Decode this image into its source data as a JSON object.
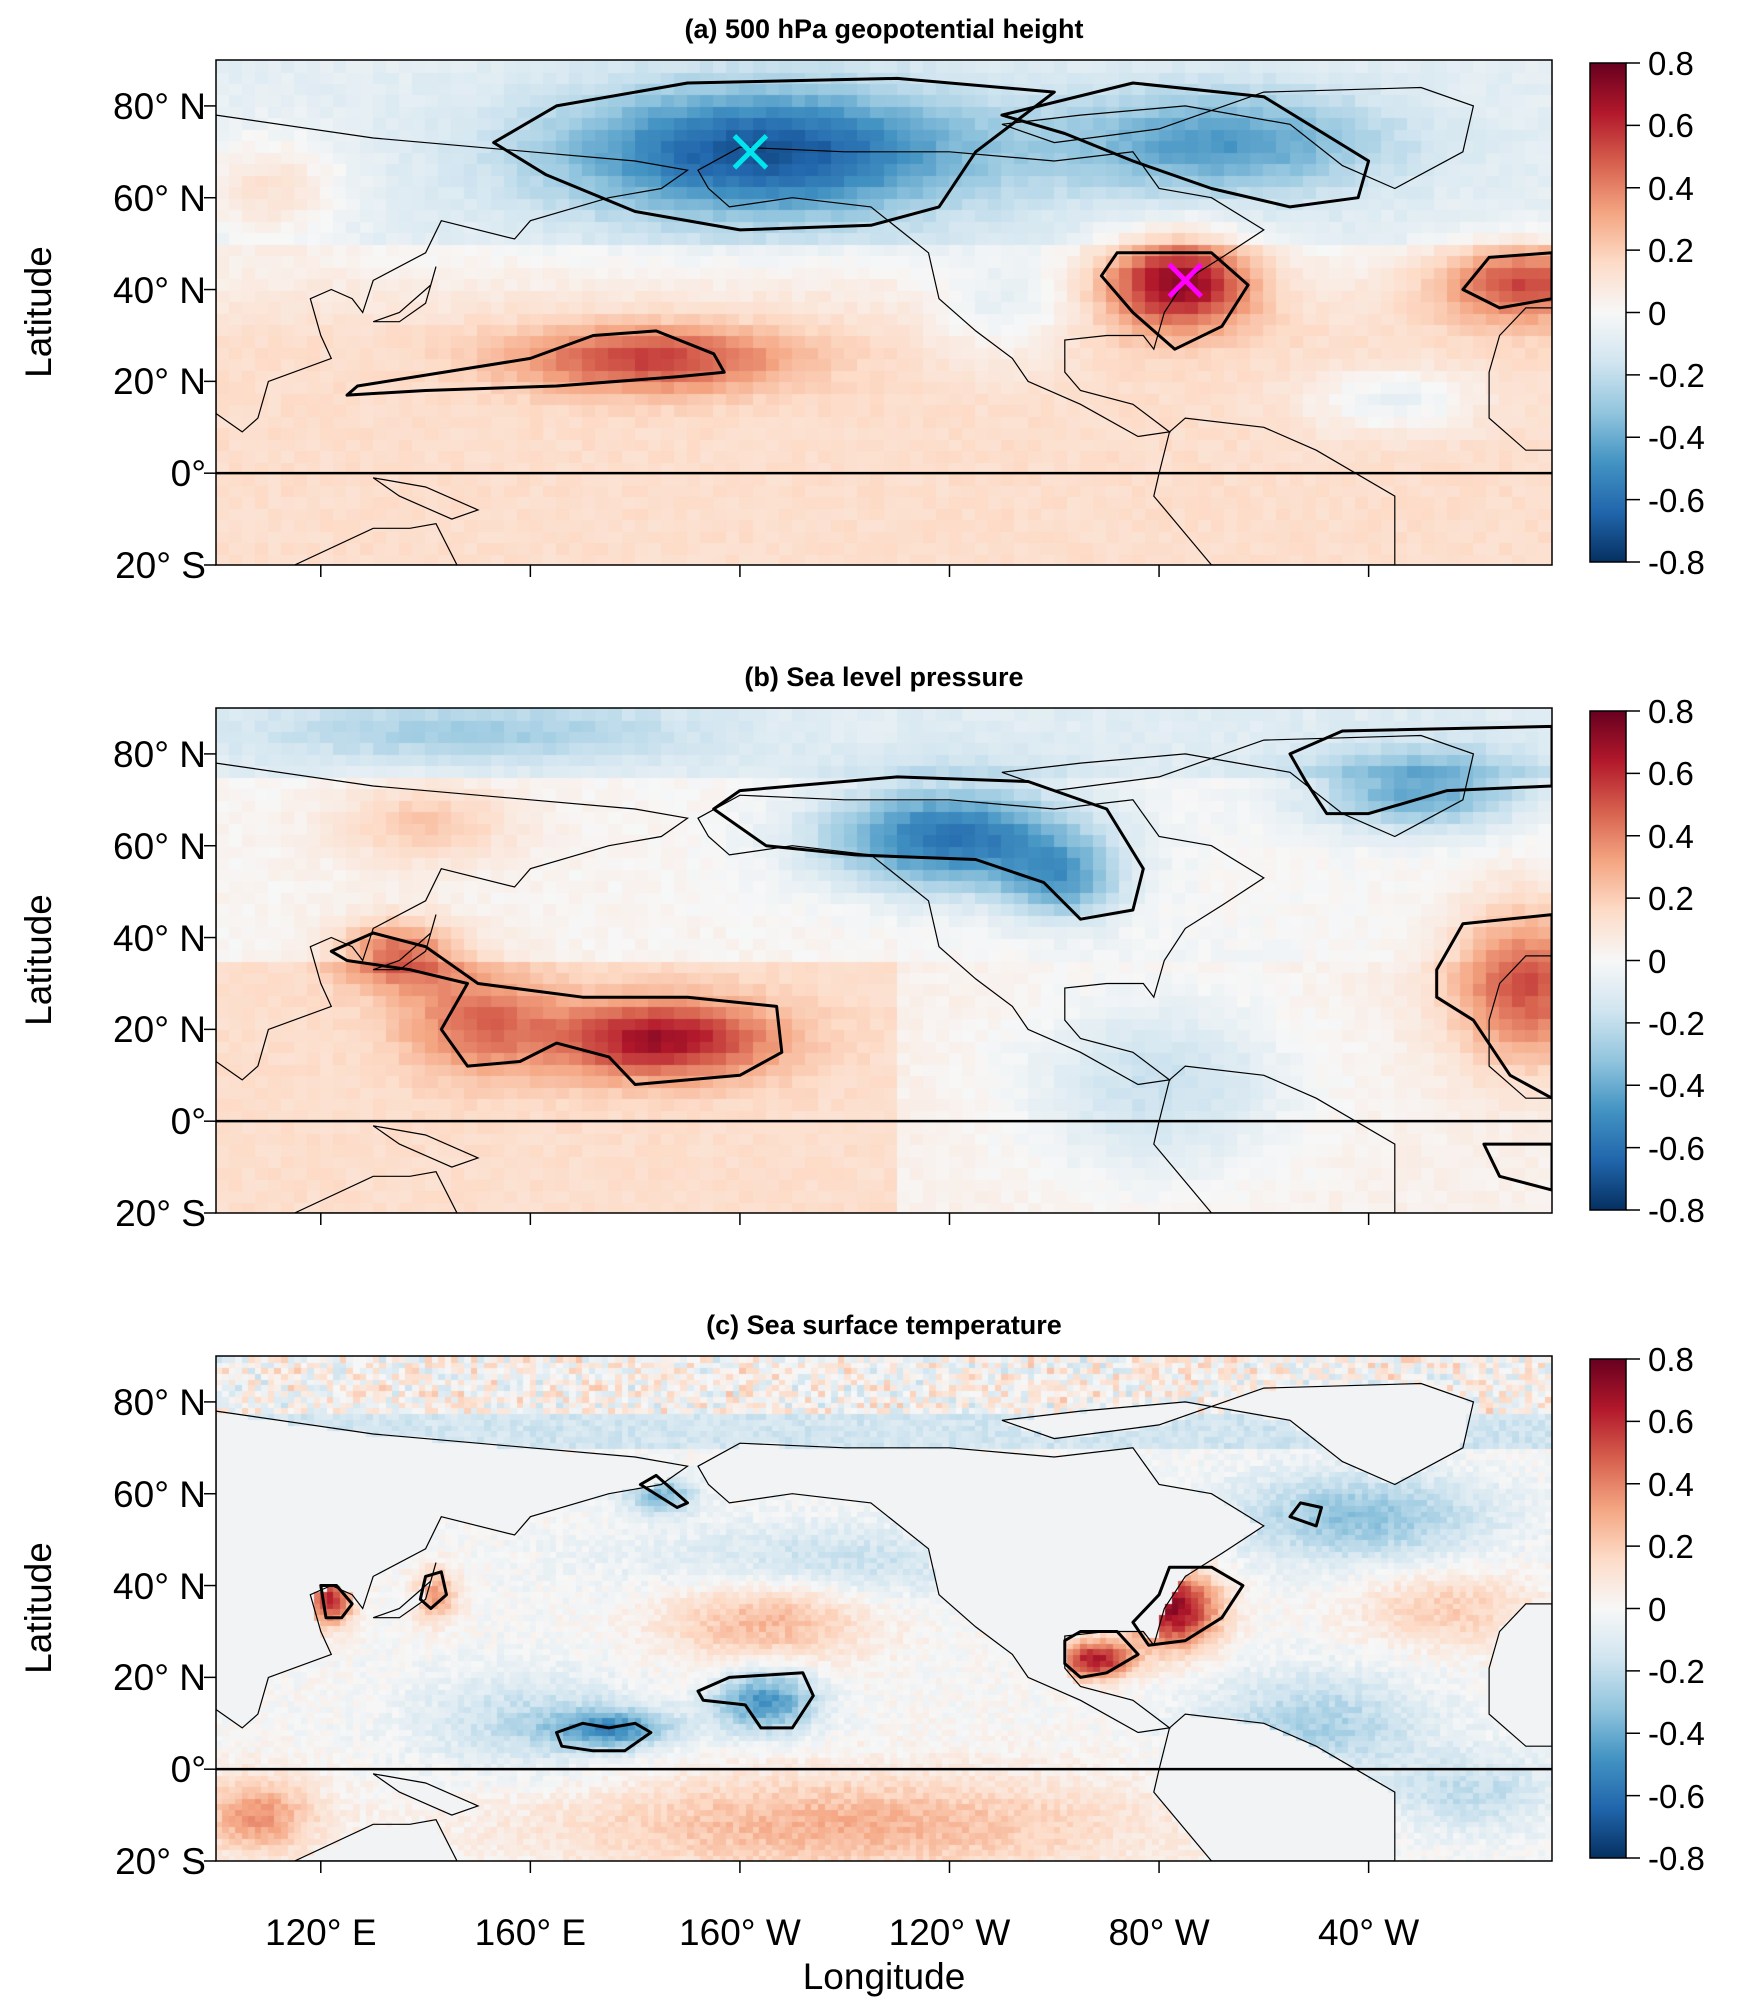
{
  "chart_data": {
    "type": "heatmap",
    "xlabel": "Longitude",
    "ylabel": "Latitude",
    "xlim_deg_east": [
      100,
      355
    ],
    "ylim": [
      -20,
      90
    ],
    "x_ticks": [
      {
        "lon": 120,
        "label": "120° E"
      },
      {
        "lon": 160,
        "label": "160° E"
      },
      {
        "lon": 200,
        "label": "160° W"
      },
      {
        "lon": 240,
        "label": "120° W"
      },
      {
        "lon": 280,
        "label": "80° W"
      },
      {
        "lon": 320,
        "label": "40° W"
      }
    ],
    "y_ticks": [
      {
        "lat": 80,
        "label": "80° N"
      },
      {
        "lat": 60,
        "label": "60° N"
      },
      {
        "lat": 40,
        "label": "40° N"
      },
      {
        "lat": 20,
        "label": "20° N"
      },
      {
        "lat": 0,
        "label": "0°"
      },
      {
        "lat": -20,
        "label": "20° S"
      }
    ],
    "colorbar": {
      "range": [
        -0.8,
        0.8
      ],
      "ticks": [
        "0.8",
        "0.6",
        "0.4",
        "0.2",
        "0",
        "-0.2",
        "-0.4",
        "-0.6",
        "-0.8"
      ],
      "colors": [
        "#053061",
        "#2166ac",
        "#4393c3",
        "#92c5de",
        "#d1e5f0",
        "#f7f7f7",
        "#fddbc7",
        "#f4a582",
        "#d6604d",
        "#b2182b",
        "#67001f"
      ]
    },
    "panels": [
      {
        "title": "(a) 500 hPa geopotential height",
        "base": "tropics_warm",
        "anomalies": [
          [
            205,
            70,
            -0.62,
            28,
            10
          ],
          [
            292,
            72,
            -0.38,
            22,
            8
          ],
          [
            284,
            42,
            0.68,
            10,
            7
          ],
          [
            350,
            42,
            0.48,
            12,
            6
          ],
          [
            183,
            25,
            0.42,
            18,
            5
          ],
          [
            250,
            35,
            -0.16,
            10,
            8
          ],
          [
            325,
            16,
            -0.2,
            12,
            5
          ],
          [
            110,
            62,
            0.2,
            10,
            8
          ]
        ],
        "contours": [
          [
            [
              153,
              72
            ],
            [
              165,
              80
            ],
            [
              190,
              85
            ],
            [
              230,
              86
            ],
            [
              260,
              83
            ],
            [
              245,
              70
            ],
            [
              238,
              58
            ],
            [
              225,
              54
            ],
            [
              200,
              53
            ],
            [
              180,
              57
            ],
            [
              163,
              65
            ]
          ],
          [
            [
              250,
              78
            ],
            [
              275,
              85
            ],
            [
              300,
              82
            ],
            [
              320,
              68
            ],
            [
              318,
              60
            ],
            [
              305,
              58
            ],
            [
              290,
              62
            ],
            [
              275,
              68
            ],
            [
              262,
              74
            ]
          ],
          [
            [
              269,
              43
            ],
            [
              272,
              48
            ],
            [
              290,
              48
            ],
            [
              297,
              41
            ],
            [
              292,
              32
            ],
            [
              283,
              27
            ],
            [
              275,
              35
            ]
          ],
          [
            [
              338,
              40
            ],
            [
              343,
              47
            ],
            [
              355,
              48
            ],
            [
              355,
              38
            ],
            [
              345,
              36
            ]
          ],
          [
            [
              125,
              17
            ],
            [
              127,
              19
            ],
            [
              160,
              25
            ],
            [
              172,
              30
            ],
            [
              184,
              31
            ],
            [
              195,
              26
            ],
            [
              197,
              22
            ],
            [
              188,
              21
            ],
            [
              165,
              19
            ],
            [
              140,
              18
            ]
          ]
        ],
        "markers": [
          {
            "lon": 202,
            "lat": 70,
            "color": "#00e5ee"
          },
          {
            "lon": 285,
            "lat": 42,
            "color": "#ff00ff"
          }
        ]
      },
      {
        "title": "(b) Sea level pressure",
        "base": "tropics_warm_west",
        "anomalies": [
          [
            240,
            62,
            -0.6,
            18,
            8
          ],
          [
            262,
            52,
            -0.35,
            8,
            6
          ],
          [
            330,
            72,
            -0.42,
            15,
            6
          ],
          [
            185,
            18,
            0.55,
            15,
            6
          ],
          [
            135,
            37,
            0.42,
            8,
            5
          ],
          [
            350,
            30,
            0.48,
            10,
            12
          ],
          [
            280,
            8,
            -0.22,
            18,
            14
          ],
          [
            150,
            22,
            0.3,
            10,
            8
          ],
          [
            140,
            65,
            0.2,
            12,
            6
          ],
          [
            150,
            85,
            -0.2,
            30,
            5
          ]
        ],
        "contours": [
          [
            [
              195,
              68
            ],
            [
              200,
              72
            ],
            [
              230,
              75
            ],
            [
              255,
              74
            ],
            [
              270,
              68
            ],
            [
              277,
              55
            ],
            [
              275,
              46
            ],
            [
              265,
              44
            ],
            [
              258,
              52
            ],
            [
              245,
              57
            ],
            [
              222,
              58
            ],
            [
              205,
              60
            ]
          ],
          [
            [
              305,
              80
            ],
            [
              315,
              85
            ],
            [
              355,
              86
            ],
            [
              355,
              73
            ],
            [
              335,
              72
            ],
            [
              320,
              67
            ],
            [
              312,
              67
            ],
            [
              308,
              74
            ]
          ],
          [
            [
              122,
              37
            ],
            [
              130,
              41
            ],
            [
              140,
              38
            ],
            [
              150,
              30
            ],
            [
              170,
              27
            ],
            [
              190,
              27
            ],
            [
              207,
              25
            ],
            [
              208,
              15
            ],
            [
              200,
              10
            ],
            [
              180,
              8
            ],
            [
              175,
              14
            ],
            [
              165,
              17
            ],
            [
              158,
              13
            ],
            [
              148,
              12
            ],
            [
              143,
              20
            ],
            [
              148,
              30
            ],
            [
              137,
              33
            ],
            [
              125,
              35
            ]
          ],
          [
            [
              333,
              33
            ],
            [
              338,
              43
            ],
            [
              355,
              45
            ],
            [
              355,
              5
            ],
            [
              347,
              10
            ],
            [
              340,
              22
            ],
            [
              333,
              27
            ]
          ],
          [
            [
              342,
              -5
            ],
            [
              345,
              -12
            ],
            [
              355,
              -15
            ],
            [
              355,
              -5
            ]
          ]
        ],
        "markers": []
      },
      {
        "title": "(c) Sea surface temperature",
        "base": "sst",
        "anomalies": [
          [
            205,
            33,
            0.28,
            14,
            7
          ],
          [
            205,
            15,
            -0.48,
            7,
            5
          ],
          [
            176,
            9,
            -0.42,
            8,
            3
          ],
          [
            215,
            45,
            -0.2,
            25,
            6
          ],
          [
            283,
            35,
            0.72,
            6,
            6
          ],
          [
            268,
            24,
            0.66,
            5,
            3
          ],
          [
            122,
            37,
            0.6,
            3,
            4
          ],
          [
            142,
            38,
            0.35,
            3,
            4
          ],
          [
            220,
            -12,
            0.28,
            40,
            8
          ],
          [
            108,
            -10,
            0.35,
            8,
            6
          ],
          [
            318,
            55,
            -0.32,
            18,
            7
          ],
          [
            335,
            35,
            0.2,
            12,
            6
          ],
          [
            310,
            10,
            -0.26,
            15,
            8
          ],
          [
            340,
            -5,
            -0.2,
            12,
            6
          ],
          [
            160,
            10,
            -0.2,
            15,
            8
          ],
          [
            185,
            60,
            -0.35,
            5,
            3
          ]
        ],
        "contours": [
          [
            [
              275,
              32
            ],
            [
              280,
              38
            ],
            [
              282,
              44
            ],
            [
              290,
              44
            ],
            [
              296,
              40
            ],
            [
              292,
              33
            ],
            [
              285,
              28
            ],
            [
              278,
              27
            ]
          ],
          [
            [
              262,
              28
            ],
            [
              265,
              30
            ],
            [
              272,
              30
            ],
            [
              276,
              25
            ],
            [
              270,
              21
            ],
            [
              265,
              20
            ],
            [
              262,
              23
            ]
          ],
          [
            [
              120,
              40
            ],
            [
              123,
              40
            ],
            [
              126,
              36
            ],
            [
              124,
              33
            ],
            [
              121,
              33
            ]
          ],
          [
            [
              140,
              42
            ],
            [
              143,
              43
            ],
            [
              144,
              38
            ],
            [
              141,
              35
            ],
            [
              139,
              37
            ]
          ],
          [
            [
              192,
              17
            ],
            [
              198,
              20
            ],
            [
              212,
              21
            ],
            [
              214,
              16
            ],
            [
              210,
              9
            ],
            [
              204,
              9
            ],
            [
              201,
              14
            ],
            [
              193,
              15
            ]
          ],
          [
            [
              165,
              8
            ],
            [
              170,
              10
            ],
            [
              175,
              9
            ],
            [
              180,
              10
            ],
            [
              183,
              8
            ],
            [
              178,
              4
            ],
            [
              172,
              4
            ],
            [
              166,
              5
            ]
          ],
          [
            [
              305,
              55
            ],
            [
              307,
              58
            ],
            [
              311,
              57
            ],
            [
              310,
              53
            ]
          ],
          [
            [
              181,
              62
            ],
            [
              184,
              64
            ],
            [
              190,
              58
            ],
            [
              188,
              57
            ]
          ]
        ],
        "markers": []
      }
    ]
  }
}
